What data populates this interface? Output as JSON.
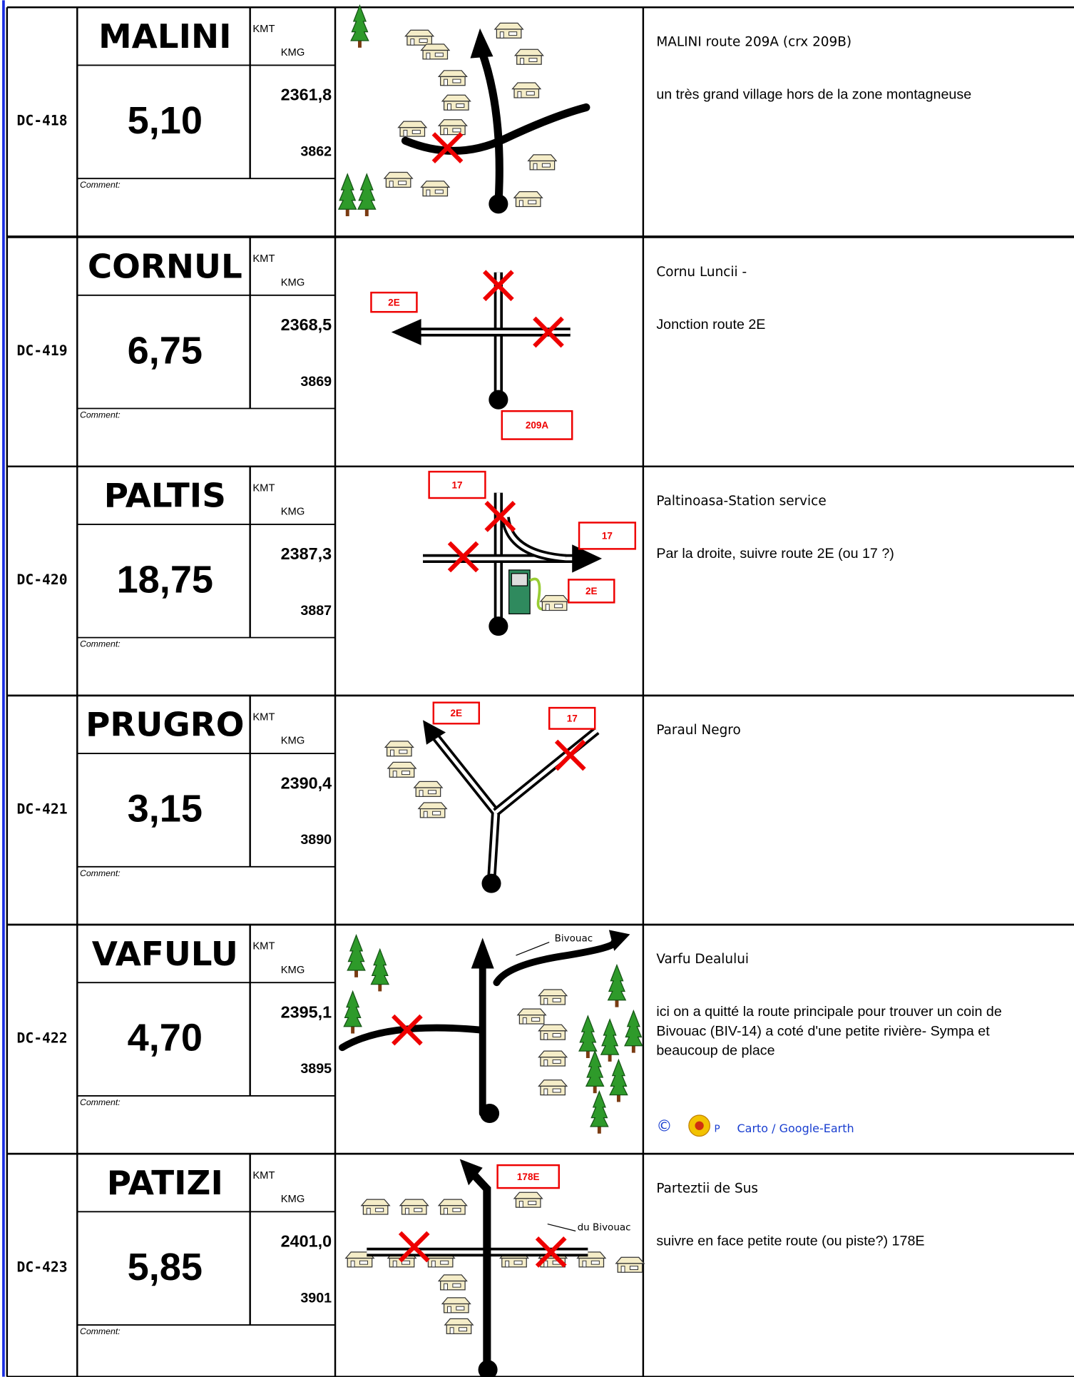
{
  "labels": {
    "kmt": "KMT",
    "kmg": "KMG",
    "comment": "Comment:"
  },
  "rows": [
    {
      "id": "DC-418",
      "name": "MALINI",
      "distance": "5,10",
      "km_total": "2361,8",
      "km_partial": "3862",
      "notes": [
        "MALINI route 209A (crx 209B)",
        "un très grand village hors de la zone montagneuse"
      ]
    },
    {
      "id": "DC-419",
      "name": "CORNUL",
      "distance": "6,75",
      "km_total": "2368,5",
      "km_partial": "3869",
      "notes": [
        "Cornu Luncii -",
        "Jonction route 2E"
      ],
      "signs": [
        "2E",
        "209A"
      ]
    },
    {
      "id": "DC-420",
      "name": "PALTIS",
      "distance": "18,75",
      "km_total": "2387,3",
      "km_partial": "3887",
      "notes": [
        "Paltinoasa-Station service",
        "Par la droite, suivre route 2E (ou 17 ?)"
      ],
      "signs": [
        "17",
        "17",
        "2E"
      ]
    },
    {
      "id": "DC-421",
      "name": "PRUGRO",
      "distance": "3,15",
      "km_total": "2390,4",
      "km_partial": "3890",
      "notes": [
        "Paraul Negro"
      ],
      "signs": [
        "2E",
        "17"
      ]
    },
    {
      "id": "DC-422",
      "name": "VAFULU",
      "distance": "4,70",
      "km_total": "2395,1",
      "km_partial": "3895",
      "notes": [
        "Varfu Dealului",
        "ici on a quitté la route principale pour trouver un coin de",
        "Bivouac (BIV-14) a coté d'une petite rivière- Sympa et",
        "beaucoup de place"
      ],
      "signs": [
        "Bivouac"
      ],
      "credit": {
        "symbol": "©",
        "letter": "P",
        "text": "Carto / Google-Earth"
      }
    },
    {
      "id": "DC-423",
      "name": "PATIZI",
      "distance": "5,85",
      "km_total": "2401,0",
      "km_partial": "3901",
      "notes": [
        "Parteztii de Sus",
        "suivre en face petite route (ou piste?) 178E"
      ],
      "signs": [
        "178E",
        "du Bivouac"
      ]
    }
  ]
}
